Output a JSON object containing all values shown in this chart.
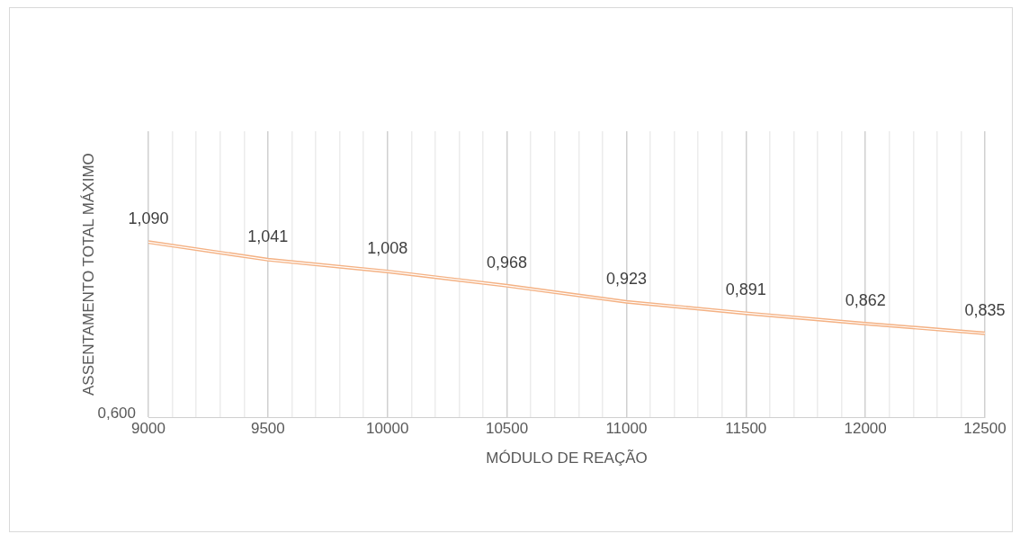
{
  "chart_data": {
    "type": "line",
    "xlabel": "MÓDULO DE REAÇÃO",
    "ylabel": "ASSENTAMENTO TOTAL MÁXIMO",
    "x": [
      9000,
      9500,
      10000,
      10500,
      11000,
      11500,
      12000,
      12500
    ],
    "series": [
      {
        "color": "#f4b183",
        "values": [
          1.09,
          1.041,
          1.008,
          0.968,
          0.923,
          0.891,
          0.862,
          0.835
        ],
        "value_labels": [
          "1,090",
          "1,041",
          "1,008",
          "0,968",
          "0,923",
          "0,891",
          "0,862",
          "0,835"
        ]
      }
    ],
    "xlim": [
      9000,
      12500
    ],
    "xticks": [
      9000,
      {
        "value": 9100,
        "label": null
      },
      {
        "value": 9200,
        "label": null
      },
      {
        "value": 9300,
        "label": null
      },
      {
        "value": 9400,
        "label": null
      },
      9500,
      {
        "value": 9600,
        "label": null
      },
      {
        "value": 9700,
        "label": null
      },
      {
        "value": 9800,
        "label": null
      },
      {
        "value": 9900,
        "label": null
      },
      10000,
      {
        "value": 10100,
        "label": null
      },
      {
        "value": 10200,
        "label": null
      },
      {
        "value": 10300,
        "label": null
      },
      {
        "value": 10400,
        "label": null
      },
      10500,
      {
        "value": 10600,
        "label": null
      },
      {
        "value": 10700,
        "label": null
      },
      {
        "value": 10800,
        "label": null
      },
      {
        "value": 10900,
        "label": null
      },
      11000,
      {
        "value": 11100,
        "label": null
      },
      {
        "value": 11200,
        "label": null
      },
      {
        "value": 11300,
        "label": null
      },
      {
        "value": 11400,
        "label": null
      },
      11500,
      {
        "value": 11600,
        "label": null
      },
      {
        "value": 11700,
        "label": null
      },
      {
        "value": 11800,
        "label": null
      },
      {
        "value": 11900,
        "label": null
      },
      12000,
      {
        "value": 12100,
        "label": null
      },
      {
        "value": 12200,
        "label": null
      },
      {
        "value": 12300,
        "label": null
      },
      {
        "value": 12400,
        "label": null
      },
      12500
    ],
    "ylim": [
      0.6,
      1.4
    ],
    "annotations": [
      "0,600"
    ],
    "grid": "x",
    "legend": false,
    "marker": "none",
    "line_style": "solid"
  }
}
